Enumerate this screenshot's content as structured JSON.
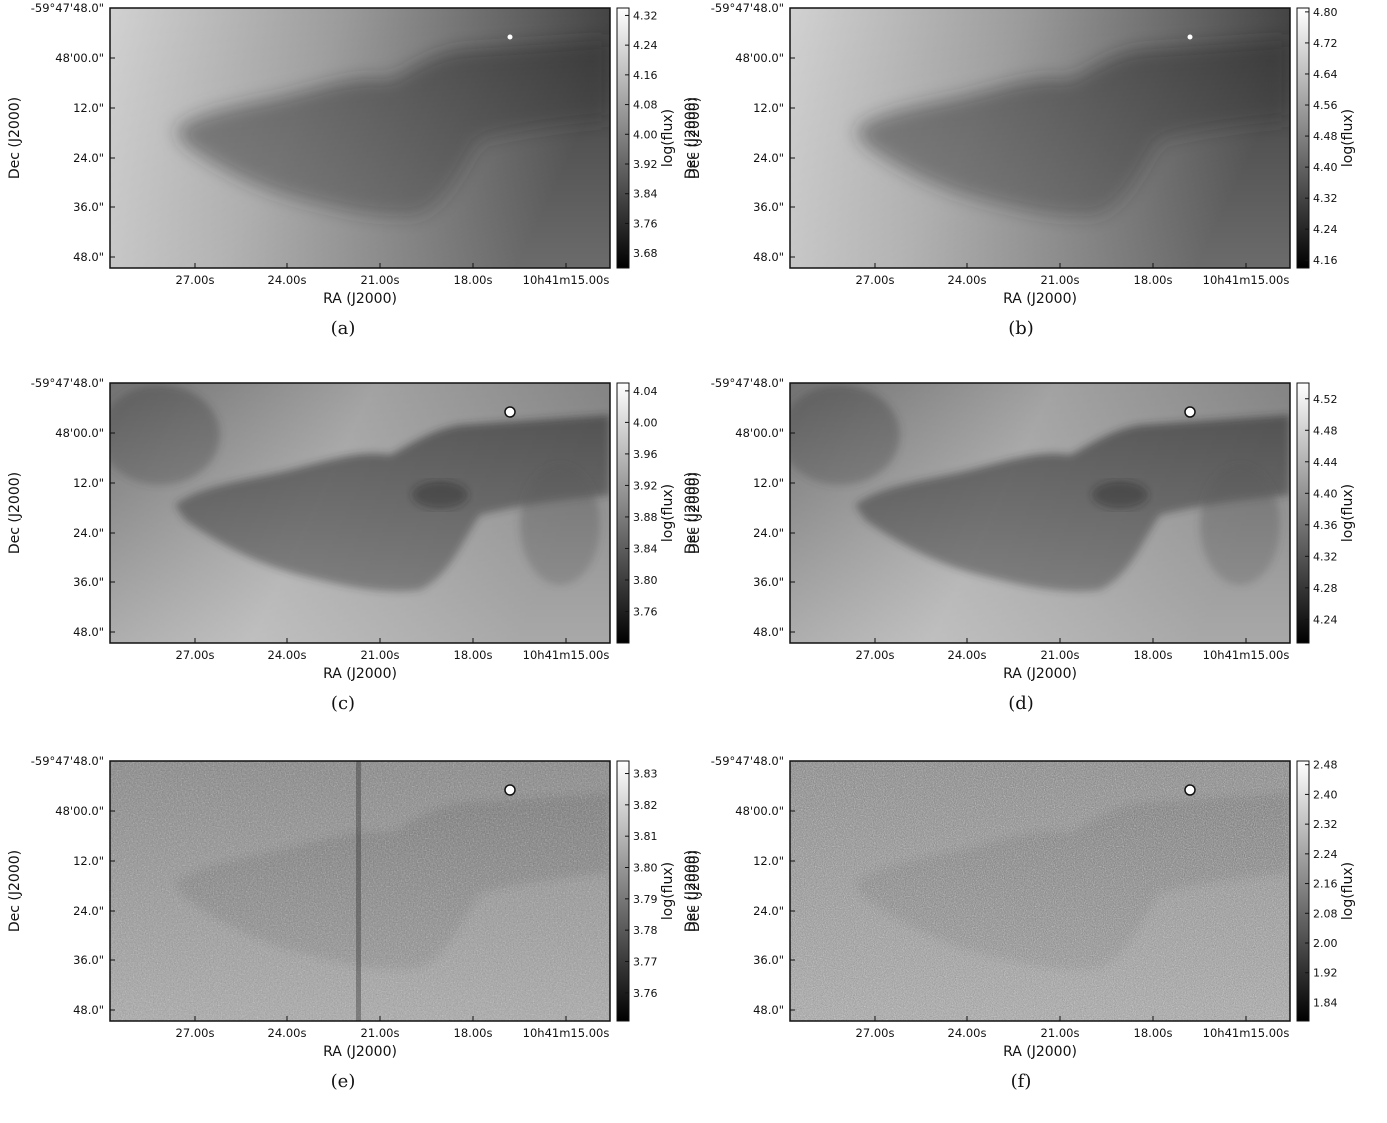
{
  "axes": {
    "xlabel": "RA (J2000)",
    "ylabel": "Dec (J2000)",
    "x_ticks": [
      "27.00s",
      "24.00s",
      "21.00s",
      "18.00s",
      "10h41m15.00s"
    ],
    "y_ticks": [
      "-59°47'48.0\"",
      "48'00.0\"",
      "12.0\"",
      "24.0\"",
      "36.0\"",
      "48.0\""
    ],
    "colorbar_label": "log(flux)"
  },
  "panels": [
    {
      "id": "a",
      "caption": "(a)",
      "colorbar_ticks": [
        "4.32",
        "4.24",
        "4.16",
        "4.08",
        "4.00",
        "3.92",
        "3.84",
        "3.76",
        "3.68"
      ],
      "cb_range": [
        3.64,
        4.34
      ],
      "show_ylabel_right": true
    },
    {
      "id": "b",
      "caption": "(b)",
      "colorbar_ticks": [
        "4.80",
        "4.72",
        "4.64",
        "4.56",
        "4.48",
        "4.40",
        "4.32",
        "4.24",
        "4.16"
      ],
      "cb_range": [
        4.14,
        4.81
      ],
      "show_ylabel_right": false
    },
    {
      "id": "c",
      "caption": "(c)",
      "colorbar_ticks": [
        "4.04",
        "4.00",
        "3.96",
        "3.92",
        "3.88",
        "3.84",
        "3.80",
        "3.76"
      ],
      "cb_range": [
        3.72,
        4.05
      ],
      "show_ylabel_right": true
    },
    {
      "id": "d",
      "caption": "(d)",
      "colorbar_ticks": [
        "4.52",
        "4.48",
        "4.44",
        "4.40",
        "4.36",
        "4.32",
        "4.28",
        "4.24"
      ],
      "cb_range": [
        4.21,
        4.54
      ],
      "show_ylabel_right": false
    },
    {
      "id": "e",
      "caption": "(e)",
      "colorbar_ticks": [
        "3.83",
        "3.82",
        "3.81",
        "3.80",
        "3.79",
        "3.78",
        "3.77",
        "3.76"
      ],
      "cb_range": [
        3.751,
        3.834
      ],
      "show_ylabel_right": true
    },
    {
      "id": "f",
      "caption": "(f)",
      "colorbar_ticks": [
        "2.48",
        "2.40",
        "2.32",
        "2.24",
        "2.16",
        "2.08",
        "2.00",
        "1.92",
        "1.84"
      ],
      "cb_range": [
        1.79,
        2.49
      ],
      "show_ylabel_right": false
    }
  ]
}
